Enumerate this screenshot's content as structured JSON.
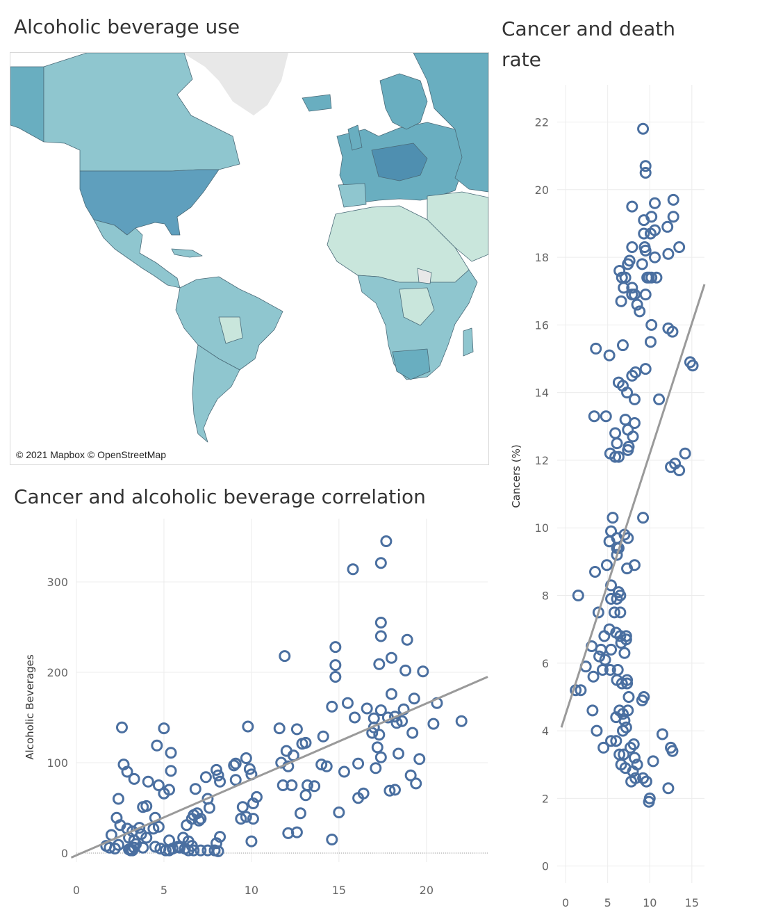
{
  "map": {
    "title": "Alcoholic beverage use",
    "attribution": "© 2021 Mapbox  © OpenStreetMap",
    "colors": {
      "ocean": "#ffffff",
      "low": "#c9e6dc",
      "mid": "#8fc6cf",
      "high": "#69aec0",
      "highest": "#4f8fb0",
      "nodata": "#e8e8e8",
      "border": "#4a6a78"
    }
  },
  "chart_data": [
    {
      "type": "scatter",
      "title": "Cancer and alcoholic beverage correlation",
      "xlabel": "",
      "ylabel": "Alcoholic Beverages",
      "xlim": [
        0,
        23.5
      ],
      "ylim": [
        -10,
        370
      ],
      "xticks": [
        0,
        5,
        10,
        15,
        20
      ],
      "yticks": [
        0,
        100,
        200,
        300
      ],
      "marker_color": "#4a6fa0",
      "trend_color": "#9a9a9a",
      "trend": {
        "x0": -0.3,
        "y0": -5,
        "x1": 23.5,
        "y1": 195
      },
      "points": [
        [
          17.7,
          345
        ],
        [
          15.8,
          314
        ],
        [
          17.4,
          321
        ],
        [
          17.4,
          255
        ],
        [
          17.4,
          240
        ],
        [
          18.9,
          236
        ],
        [
          14.8,
          228
        ],
        [
          11.9,
          218
        ],
        [
          18.0,
          216
        ],
        [
          17.3,
          209
        ],
        [
          14.8,
          208
        ],
        [
          18.8,
          202
        ],
        [
          19.8,
          201
        ],
        [
          14.8,
          195
        ],
        [
          18.0,
          176
        ],
        [
          19.3,
          171
        ],
        [
          20.6,
          166
        ],
        [
          15.5,
          166
        ],
        [
          14.6,
          162
        ],
        [
          16.6,
          160
        ],
        [
          18.7,
          159
        ],
        [
          17.4,
          158
        ],
        [
          17.0,
          149
        ],
        [
          18.2,
          151
        ],
        [
          17.8,
          150
        ],
        [
          15.9,
          150
        ],
        [
          18.6,
          146
        ],
        [
          22.0,
          146
        ],
        [
          18.3,
          144
        ],
        [
          20.4,
          143
        ],
        [
          11.6,
          138
        ],
        [
          12.6,
          137
        ],
        [
          9.8,
          140
        ],
        [
          17.0,
          139
        ],
        [
          16.9,
          133
        ],
        [
          17.3,
          131
        ],
        [
          19.2,
          133
        ],
        [
          14.1,
          129
        ],
        [
          12.9,
          121
        ],
        [
          13.1,
          122
        ],
        [
          12.0,
          113
        ],
        [
          12.4,
          108
        ],
        [
          17.2,
          117
        ],
        [
          17.4,
          106
        ],
        [
          18.4,
          110
        ],
        [
          19.6,
          104
        ],
        [
          11.7,
          100
        ],
        [
          16.1,
          99
        ],
        [
          14.0,
          98
        ],
        [
          14.3,
          96
        ],
        [
          15.3,
          90
        ],
        [
          12.1,
          96
        ],
        [
          9.7,
          105
        ],
        [
          9.9,
          93
        ],
        [
          10.0,
          87
        ],
        [
          9.1,
          99
        ],
        [
          9.0,
          97
        ],
        [
          9.1,
          81
        ],
        [
          8.0,
          92
        ],
        [
          8.1,
          86
        ],
        [
          7.4,
          84
        ],
        [
          8.2,
          79
        ],
        [
          7.5,
          60
        ],
        [
          17.1,
          94
        ],
        [
          19.1,
          86
        ],
        [
          19.4,
          77
        ],
        [
          11.8,
          75
        ],
        [
          12.3,
          75
        ],
        [
          13.2,
          75
        ],
        [
          13.6,
          74
        ],
        [
          16.4,
          66
        ],
        [
          16.1,
          61
        ],
        [
          17.9,
          69
        ],
        [
          18.2,
          70
        ],
        [
          13.1,
          64
        ],
        [
          10.3,
          62
        ],
        [
          10.1,
          55
        ],
        [
          9.5,
          51
        ],
        [
          9.7,
          40
        ],
        [
          9.4,
          38
        ],
        [
          10.1,
          38
        ],
        [
          12.8,
          44
        ],
        [
          15.0,
          45
        ],
        [
          12.1,
          22
        ],
        [
          12.6,
          23
        ],
        [
          14.6,
          15
        ],
        [
          10.0,
          13
        ],
        [
          2.6,
          139
        ],
        [
          5.0,
          138
        ],
        [
          4.6,
          119
        ],
        [
          5.4,
          111
        ],
        [
          2.7,
          98
        ],
        [
          2.9,
          90
        ],
        [
          3.3,
          82
        ],
        [
          5.4,
          91
        ],
        [
          4.1,
          79
        ],
        [
          4.7,
          75
        ],
        [
          5.0,
          66
        ],
        [
          5.0,
          66
        ],
        [
          5.3,
          70
        ],
        [
          6.8,
          71
        ],
        [
          2.4,
          60
        ],
        [
          3.8,
          51
        ],
        [
          4.0,
          52
        ],
        [
          7.6,
          50
        ],
        [
          4.4,
          27
        ],
        [
          2.3,
          39
        ],
        [
          2.5,
          31
        ],
        [
          2.9,
          27
        ],
        [
          3.2,
          24
        ],
        [
          3.6,
          28
        ],
        [
          4.5,
          39
        ],
        [
          4.7,
          29
        ],
        [
          3.0,
          17
        ],
        [
          3.3,
          14
        ],
        [
          3.7,
          21
        ],
        [
          4.0,
          17
        ],
        [
          2.0,
          20
        ],
        [
          1.7,
          8
        ],
        [
          1.9,
          6
        ],
        [
          2.2,
          5
        ],
        [
          2.4,
          9
        ],
        [
          3.0,
          4
        ],
        [
          3.2,
          3
        ],
        [
          3.3,
          6
        ],
        [
          3.8,
          6
        ],
        [
          4.5,
          7
        ],
        [
          4.8,
          5
        ],
        [
          5.1,
          3
        ],
        [
          5.3,
          3
        ],
        [
          5.5,
          5
        ],
        [
          5.8,
          7
        ],
        [
          6.2,
          5
        ],
        [
          6.4,
          3
        ],
        [
          6.7,
          3
        ],
        [
          7.1,
          3
        ],
        [
          7.5,
          3
        ],
        [
          7.9,
          3
        ],
        [
          8.1,
          2
        ],
        [
          6.1,
          17
        ],
        [
          6.4,
          13
        ],
        [
          6.7,
          42
        ],
        [
          6.9,
          44
        ],
        [
          6.6,
          38
        ],
        [
          7.0,
          36
        ],
        [
          7.1,
          38
        ],
        [
          6.3,
          31
        ],
        [
          8.2,
          18
        ],
        [
          8.0,
          11
        ],
        [
          5.3,
          14
        ],
        [
          5.9,
          6
        ],
        [
          6.6,
          8
        ],
        [
          3.1,
          3
        ],
        [
          3.4,
          10
        ]
      ]
    },
    {
      "type": "scatter",
      "title": "Cancer and death rate",
      "xlabel": "",
      "ylabel": "Cancers (%)",
      "xlim": [
        -1,
        16.5
      ],
      "ylim": [
        -0.5,
        23.1
      ],
      "xticks": [
        0,
        5,
        10,
        15
      ],
      "yticks": [
        0,
        2,
        4,
        6,
        8,
        10,
        12,
        14,
        16,
        18,
        20,
        22
      ],
      "marker_color": "#4a6fa0",
      "trend_color": "#9a9a9a",
      "trend": {
        "x0": -0.5,
        "y0": 4.1,
        "x1": 16.5,
        "y1": 17.2
      },
      "points": [
        [
          9.2,
          21.8
        ],
        [
          9.5,
          20.7
        ],
        [
          9.5,
          20.5
        ],
        [
          7.9,
          19.5
        ],
        [
          10.6,
          19.6
        ],
        [
          12.8,
          19.7
        ],
        [
          9.3,
          19.1
        ],
        [
          10.2,
          19.2
        ],
        [
          12.8,
          19.2
        ],
        [
          9.3,
          18.7
        ],
        [
          10.1,
          18.7
        ],
        [
          10.6,
          18.8
        ],
        [
          12.1,
          18.9
        ],
        [
          9.4,
          18.3
        ],
        [
          9.5,
          18.2
        ],
        [
          7.9,
          18.3
        ],
        [
          13.5,
          18.3
        ],
        [
          12.2,
          18.1
        ],
        [
          10.6,
          18.0
        ],
        [
          7.6,
          17.9
        ],
        [
          7.4,
          17.8
        ],
        [
          9.1,
          17.8
        ],
        [
          6.4,
          17.6
        ],
        [
          6.7,
          17.4
        ],
        [
          7.1,
          17.4
        ],
        [
          9.9,
          17.4
        ],
        [
          10.2,
          17.4
        ],
        [
          10.8,
          17.4
        ],
        [
          9.7,
          17.4
        ],
        [
          6.9,
          17.1
        ],
        [
          7.9,
          17.1
        ],
        [
          7.9,
          16.9
        ],
        [
          8.2,
          16.9
        ],
        [
          9.5,
          16.9
        ],
        [
          6.6,
          16.7
        ],
        [
          8.5,
          16.6
        ],
        [
          8.8,
          16.4
        ],
        [
          10.2,
          16.0
        ],
        [
          12.2,
          15.9
        ],
        [
          12.7,
          15.8
        ],
        [
          3.6,
          15.3
        ],
        [
          6.8,
          15.4
        ],
        [
          10.1,
          15.5
        ],
        [
          5.2,
          15.1
        ],
        [
          14.8,
          14.9
        ],
        [
          15.1,
          14.8
        ],
        [
          9.5,
          14.7
        ],
        [
          8.3,
          14.6
        ],
        [
          7.9,
          14.5
        ],
        [
          6.3,
          14.3
        ],
        [
          6.8,
          14.2
        ],
        [
          7.3,
          14.0
        ],
        [
          8.2,
          13.8
        ],
        [
          11.1,
          13.8
        ],
        [
          3.4,
          13.3
        ],
        [
          4.8,
          13.3
        ],
        [
          7.1,
          13.2
        ],
        [
          8.2,
          13.1
        ],
        [
          5.9,
          12.8
        ],
        [
          7.4,
          12.9
        ],
        [
          6.1,
          12.5
        ],
        [
          8.0,
          12.7
        ],
        [
          7.5,
          12.4
        ],
        [
          7.4,
          12.3
        ],
        [
          5.3,
          12.2
        ],
        [
          5.9,
          12.1
        ],
        [
          6.3,
          12.1
        ],
        [
          13.0,
          11.9
        ],
        [
          14.2,
          12.2
        ],
        [
          12.5,
          11.8
        ],
        [
          13.5,
          11.7
        ],
        [
          5.6,
          10.3
        ],
        [
          9.2,
          10.3
        ],
        [
          5.4,
          9.9
        ],
        [
          5.2,
          9.6
        ],
        [
          6.1,
          9.7
        ],
        [
          7.0,
          9.8
        ],
        [
          7.4,
          9.7
        ],
        [
          6.1,
          9.4
        ],
        [
          6.3,
          9.4
        ],
        [
          6.1,
          9.2
        ],
        [
          4.9,
          8.9
        ],
        [
          8.2,
          8.9
        ],
        [
          3.5,
          8.7
        ],
        [
          7.3,
          8.8
        ],
        [
          1.5,
          8.0
        ],
        [
          5.4,
          8.3
        ],
        [
          6.3,
          8.1
        ],
        [
          6.5,
          8.0
        ],
        [
          5.4,
          7.9
        ],
        [
          6.1,
          7.9
        ],
        [
          3.9,
          7.5
        ],
        [
          5.8,
          7.5
        ],
        [
          6.5,
          7.5
        ],
        [
          5.2,
          7.0
        ],
        [
          6.0,
          6.9
        ],
        [
          7.2,
          6.8
        ],
        [
          4.6,
          6.8
        ],
        [
          6.5,
          6.8
        ],
        [
          7.2,
          6.7
        ],
        [
          3.1,
          6.5
        ],
        [
          4.2,
          6.4
        ],
        [
          5.4,
          6.4
        ],
        [
          6.6,
          6.6
        ],
        [
          7.0,
          6.3
        ],
        [
          4.0,
          6.2
        ],
        [
          4.7,
          6.1
        ],
        [
          2.4,
          5.9
        ],
        [
          4.4,
          5.8
        ],
        [
          5.3,
          5.8
        ],
        [
          6.2,
          5.8
        ],
        [
          3.3,
          5.6
        ],
        [
          6.1,
          5.5
        ],
        [
          6.7,
          5.4
        ],
        [
          7.3,
          5.5
        ],
        [
          7.3,
          5.4
        ],
        [
          1.2,
          5.2
        ],
        [
          1.8,
          5.2
        ],
        [
          7.5,
          5.0
        ],
        [
          9.3,
          5.0
        ],
        [
          9.1,
          4.9
        ],
        [
          3.2,
          4.6
        ],
        [
          6.4,
          4.6
        ],
        [
          6.8,
          4.5
        ],
        [
          7.4,
          4.6
        ],
        [
          6.0,
          4.4
        ],
        [
          7.0,
          4.3
        ],
        [
          3.7,
          4.0
        ],
        [
          6.8,
          4.0
        ],
        [
          7.2,
          4.1
        ],
        [
          11.5,
          3.9
        ],
        [
          5.4,
          3.7
        ],
        [
          6.0,
          3.7
        ],
        [
          4.5,
          3.5
        ],
        [
          7.7,
          3.5
        ],
        [
          8.1,
          3.6
        ],
        [
          6.4,
          3.3
        ],
        [
          6.9,
          3.3
        ],
        [
          8.2,
          3.2
        ],
        [
          10.4,
          3.1
        ],
        [
          6.6,
          3.0
        ],
        [
          7.1,
          2.9
        ],
        [
          8.5,
          3.0
        ],
        [
          8.0,
          2.8
        ],
        [
          9.2,
          2.6
        ],
        [
          9.6,
          2.5
        ],
        [
          7.8,
          2.5
        ],
        [
          12.2,
          2.3
        ],
        [
          10.0,
          2.0
        ],
        [
          9.9,
          1.9
        ],
        [
          12.5,
          3.5
        ],
        [
          12.7,
          3.4
        ],
        [
          8.3,
          2.6
        ]
      ]
    }
  ]
}
